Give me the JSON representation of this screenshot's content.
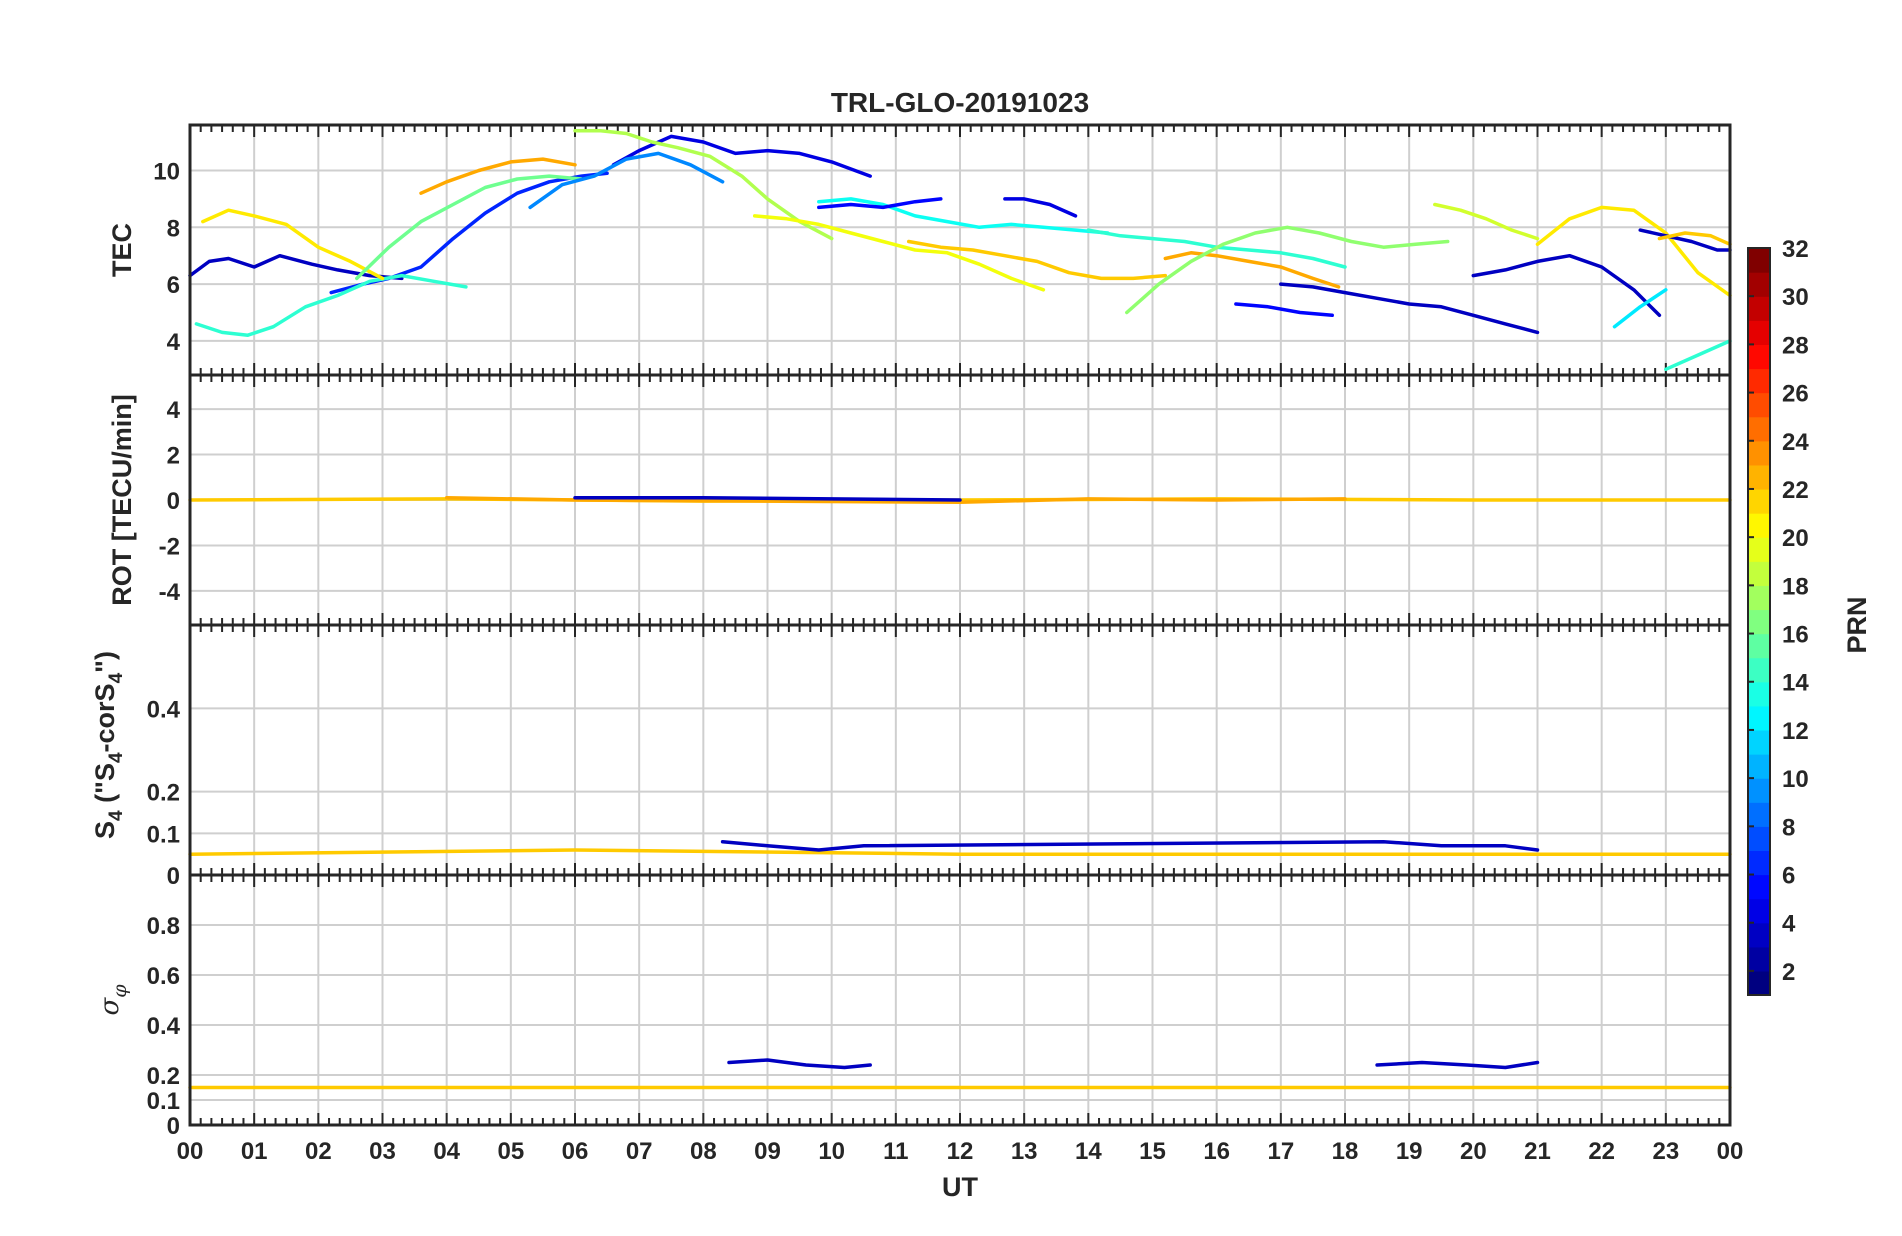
{
  "chart_data": [
    {
      "type": "line",
      "title": "TRL-GLO-20191023",
      "panel": "TEC",
      "ylabel": "TEC",
      "xlabel": "",
      "xlim": [
        0,
        24
      ],
      "ylim": [
        2.8,
        11.6
      ],
      "yticks": [
        4,
        6,
        8,
        10
      ],
      "series": [
        {
          "prn": 3,
          "x": [
            0.0,
            0.3,
            0.6,
            1.0,
            1.4,
            1.9,
            2.3,
            2.8,
            3.3
          ],
          "y": [
            6.3,
            6.8,
            6.9,
            6.6,
            7.0,
            6.7,
            6.5,
            6.3,
            6.2
          ]
        },
        {
          "prn": 6,
          "x": [
            2.2,
            2.7,
            3.1,
            3.6,
            4.1,
            4.6,
            5.1,
            5.6,
            6.1,
            6.5
          ],
          "y": [
            5.7,
            6.0,
            6.2,
            6.6,
            7.6,
            8.5,
            9.2,
            9.6,
            9.8,
            9.9
          ]
        },
        {
          "prn": 14,
          "x": [
            0.1,
            0.5,
            0.9,
            1.3,
            1.8,
            2.3,
            2.8,
            3.3,
            3.8,
            4.3
          ],
          "y": [
            4.6,
            4.3,
            4.2,
            4.5,
            5.2,
            5.6,
            6.1,
            6.3,
            6.1,
            5.9
          ]
        },
        {
          "prn": 21,
          "x": [
            0.2,
            0.6,
            1.0,
            1.5,
            2.0,
            2.5,
            3.0
          ],
          "y": [
            8.2,
            8.6,
            8.4,
            8.1,
            7.3,
            6.8,
            6.2
          ]
        },
        {
          "prn": 23,
          "x": [
            3.6,
            4.0,
            4.5,
            5.0,
            5.5,
            6.0
          ],
          "y": [
            9.2,
            9.6,
            10.0,
            10.3,
            10.4,
            10.2
          ]
        },
        {
          "prn": 16,
          "x": [
            2.6,
            3.1,
            3.6,
            4.1,
            4.6,
            5.1,
            5.6,
            6.1
          ],
          "y": [
            6.2,
            7.3,
            8.2,
            8.8,
            9.4,
            9.7,
            9.8,
            9.7
          ]
        },
        {
          "prn": 4,
          "x": [
            6.6,
            7.0,
            7.5,
            8.0,
            8.5,
            9.0,
            9.5,
            10.0,
            10.6
          ],
          "y": [
            10.2,
            10.7,
            11.2,
            11.0,
            10.6,
            10.7,
            10.6,
            10.3,
            9.8
          ]
        },
        {
          "prn": 9,
          "x": [
            5.3,
            5.8,
            6.3,
            6.8,
            7.3,
            7.8,
            8.3
          ],
          "y": [
            8.7,
            9.5,
            9.8,
            10.4,
            10.6,
            10.2,
            9.6
          ]
        },
        {
          "prn": 18,
          "x": [
            6.0,
            6.4,
            6.8,
            7.2,
            7.6,
            8.1,
            8.6,
            9.0,
            9.5,
            10.0
          ],
          "y": [
            11.4,
            11.4,
            11.3,
            11.0,
            10.8,
            10.5,
            9.8,
            9.0,
            8.2,
            7.6
          ]
        },
        {
          "prn": 20,
          "x": [
            8.8,
            9.3,
            9.8,
            10.3,
            10.8,
            11.3,
            11.8,
            12.3,
            12.8,
            13.3
          ],
          "y": [
            8.4,
            8.3,
            8.1,
            7.8,
            7.5,
            7.2,
            7.1,
            6.7,
            6.2,
            5.8
          ]
        },
        {
          "prn": 13,
          "x": [
            9.8,
            10.3,
            10.8,
            11.3,
            11.8,
            12.3,
            12.8,
            13.3,
            13.8,
            14.3
          ],
          "y": [
            8.9,
            9.0,
            8.8,
            8.4,
            8.2,
            8.0,
            8.1,
            8.0,
            7.9,
            7.8
          ]
        },
        {
          "prn": 5,
          "x": [
            9.8,
            10.3,
            10.8,
            11.3,
            11.7
          ],
          "y": [
            8.7,
            8.8,
            8.7,
            8.9,
            9.0
          ]
        },
        {
          "prn": 4,
          "x": [
            12.7,
            13.0,
            13.4,
            13.8
          ],
          "y": [
            9.0,
            9.0,
            8.8,
            8.4
          ]
        },
        {
          "prn": 22,
          "x": [
            11.2,
            11.7,
            12.2,
            12.7,
            13.2,
            13.7,
            14.2,
            14.7,
            15.2
          ],
          "y": [
            7.5,
            7.3,
            7.2,
            7.0,
            6.8,
            6.4,
            6.2,
            6.2,
            6.3
          ]
        },
        {
          "prn": 14,
          "x": [
            14.0,
            14.5,
            15.0,
            15.5,
            16.0,
            16.5,
            17.0,
            17.5,
            18.0
          ],
          "y": [
            7.9,
            7.7,
            7.6,
            7.5,
            7.3,
            7.2,
            7.1,
            6.9,
            6.6
          ]
        },
        {
          "prn": 23,
          "x": [
            15.2,
            15.6,
            16.0,
            16.5,
            17.0,
            17.5,
            17.9
          ],
          "y": [
            6.9,
            7.1,
            7.0,
            6.8,
            6.6,
            6.2,
            5.9
          ]
        },
        {
          "prn": 17,
          "x": [
            14.6,
            15.1,
            15.6,
            16.1,
            16.6,
            17.1,
            17.6,
            18.1,
            18.6,
            19.1,
            19.6
          ],
          "y": [
            5.0,
            6.0,
            6.8,
            7.4,
            7.8,
            8.0,
            7.8,
            7.5,
            7.3,
            7.4,
            7.5
          ]
        },
        {
          "prn": 5,
          "x": [
            16.3,
            16.8,
            17.3,
            17.8
          ],
          "y": [
            5.3,
            5.2,
            5.0,
            4.9
          ]
        },
        {
          "prn": 3,
          "x": [
            17.0,
            17.5,
            18.0,
            18.5,
            19.0,
            19.5,
            20.0,
            20.5,
            21.0
          ],
          "y": [
            6.0,
            5.9,
            5.7,
            5.5,
            5.3,
            5.2,
            4.9,
            4.6,
            4.3
          ]
        },
        {
          "prn": 19,
          "x": [
            19.4,
            19.8,
            20.2,
            20.6,
            21.0
          ],
          "y": [
            8.8,
            8.6,
            8.3,
            7.9,
            7.6
          ]
        },
        {
          "prn": 3,
          "x": [
            20.0,
            20.5,
            21.0,
            21.5,
            22.0,
            22.5,
            22.9
          ],
          "y": [
            6.3,
            6.5,
            6.8,
            7.0,
            6.6,
            5.8,
            4.9
          ]
        },
        {
          "prn": 21,
          "x": [
            21.0,
            21.5,
            22.0,
            22.5,
            23.0,
            23.5,
            24.0
          ],
          "y": [
            7.4,
            8.3,
            8.7,
            8.6,
            7.8,
            6.4,
            5.6
          ]
        },
        {
          "prn": 3,
          "x": [
            22.6,
            23.0,
            23.4,
            23.8,
            24.0
          ],
          "y": [
            7.9,
            7.7,
            7.5,
            7.2,
            7.2
          ]
        },
        {
          "prn": 12,
          "x": [
            22.2,
            22.6,
            23.0
          ],
          "y": [
            4.5,
            5.2,
            5.8
          ]
        },
        {
          "prn": 22,
          "x": [
            22.9,
            23.3,
            23.7,
            24.0
          ],
          "y": [
            7.6,
            7.8,
            7.7,
            7.4
          ]
        },
        {
          "prn": 14,
          "x": [
            23.0,
            23.5,
            24.0
          ],
          "y": [
            3.0,
            3.5,
            4.0
          ]
        }
      ]
    },
    {
      "type": "line",
      "panel": "ROT",
      "ylabel": "ROT [TECU/min]",
      "xlim": [
        0,
        24
      ],
      "ylim": [
        -5.5,
        5.5
      ],
      "yticks": [
        -4,
        -2,
        0,
        2,
        4
      ],
      "series": [
        {
          "prn": 22,
          "x": [
            0,
            4,
            8,
            12,
            16,
            20,
            24
          ],
          "y": [
            0.0,
            0.05,
            -0.05,
            0.0,
            0.05,
            0.0,
            0.0
          ]
        },
        {
          "prn": 23,
          "x": [
            4,
            6,
            12,
            14,
            16,
            18
          ],
          "y": [
            0.1,
            0.0,
            -0.1,
            0.05,
            0.0,
            0.05
          ]
        },
        {
          "prn": 3,
          "x": [
            6,
            8,
            10,
            12
          ],
          "y": [
            0.1,
            0.1,
            0.05,
            0.0
          ]
        }
      ]
    },
    {
      "type": "line",
      "panel": "S4",
      "ylabel": "S4 (\"S4-corS4\")",
      "xlim": [
        0,
        24
      ],
      "ylim": [
        0,
        0.6
      ],
      "yticks": [
        0,
        0.1,
        0.2,
        0.4
      ],
      "series": [
        {
          "prn": 22,
          "x": [
            0,
            6,
            12,
            18,
            24
          ],
          "y": [
            0.05,
            0.06,
            0.05,
            0.05,
            0.05
          ]
        },
        {
          "prn": 3,
          "x": [
            8.3,
            9.0,
            9.8,
            10.5,
            18.6,
            19.5,
            20.5,
            21.0
          ],
          "y": [
            0.08,
            0.07,
            0.06,
            0.07,
            0.08,
            0.07,
            0.07,
            0.06
          ]
        }
      ]
    },
    {
      "type": "line",
      "panel": "sigma_phi",
      "ylabel": "σφ",
      "xlabel": "UT",
      "xlim": [
        0,
        24
      ],
      "ylim": [
        0,
        1.0
      ],
      "yticks": [
        0,
        0.1,
        0.2,
        0.4,
        0.6,
        0.8
      ],
      "xticks": [
        "00",
        "01",
        "02",
        "03",
        "04",
        "05",
        "06",
        "07",
        "08",
        "09",
        "10",
        "11",
        "12",
        "13",
        "14",
        "15",
        "16",
        "17",
        "18",
        "19",
        "20",
        "21",
        "22",
        "23",
        "00"
      ],
      "series": [
        {
          "prn": 22,
          "x": [
            0,
            6,
            12,
            18,
            24
          ],
          "y": [
            0.15,
            0.15,
            0.15,
            0.15,
            0.15
          ]
        },
        {
          "prn": 3,
          "x": [
            8.4,
            9.0,
            9.6,
            10.2,
            10.6
          ],
          "y": [
            0.25,
            0.26,
            0.24,
            0.23,
            0.24
          ]
        },
        {
          "prn": 3,
          "x": [
            18.5,
            19.2,
            19.9,
            20.5,
            21.0
          ],
          "y": [
            0.24,
            0.25,
            0.24,
            0.23,
            0.25
          ]
        }
      ]
    }
  ],
  "figure": {
    "title": "TRL-GLO-20191023",
    "xlabel": "UT",
    "ylabels": {
      "tec": "TEC",
      "rot": "ROT [TECU/min]",
      "s4_main": "S",
      "s4_sub": "4",
      "s4_paren_open": "(\"S",
      "s4_mid": "-corS",
      "s4_paren_close": "\")",
      "sigma": "σ",
      "sigma_sub": "φ"
    }
  },
  "colorbar": {
    "label": "PRN",
    "min": 1,
    "max": 32,
    "ticks": [
      "2",
      "4",
      "6",
      "8",
      "10",
      "12",
      "14",
      "16",
      "18",
      "20",
      "22",
      "24",
      "26",
      "28",
      "30",
      "32"
    ]
  }
}
